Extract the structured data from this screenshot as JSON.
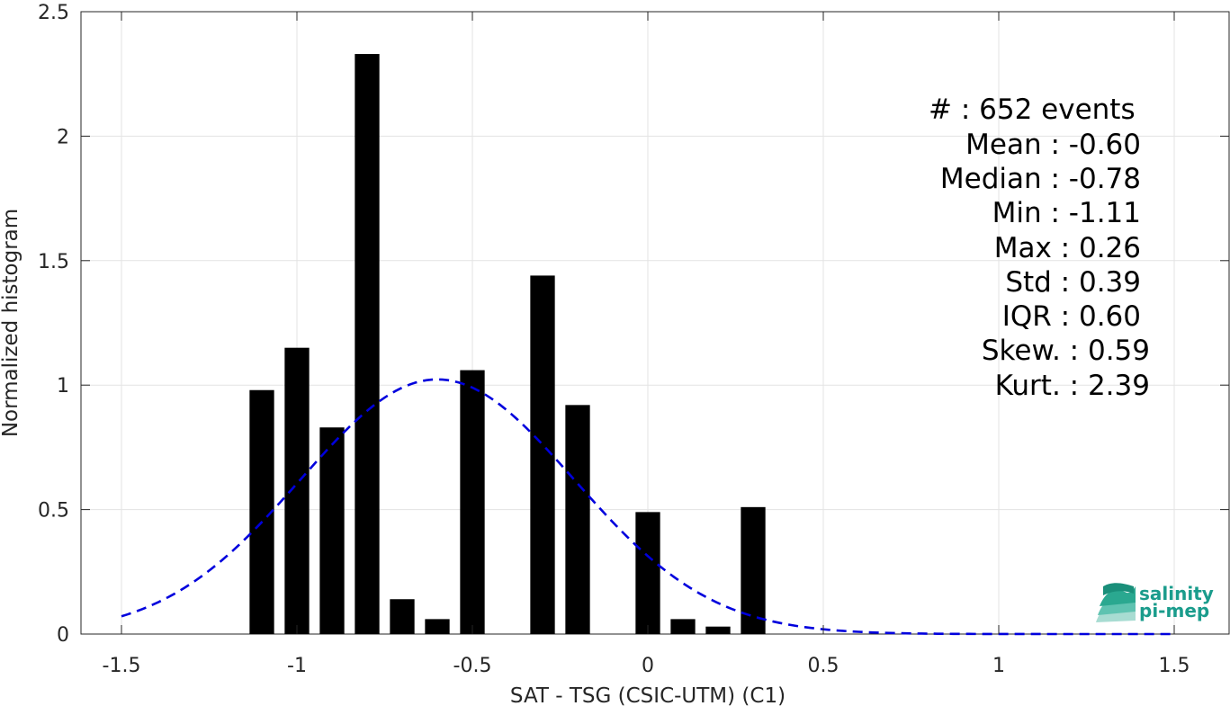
{
  "chart_data": {
    "type": "bar",
    "xlabel": "SAT - TSG (CSIC-UTM) (C1)",
    "ylabel": "Normalized histogram",
    "xlim": [
      -1.6,
      1.6
    ],
    "ylim": [
      0,
      2.5
    ],
    "x_ticks": [
      -1.5,
      -1,
      -0.5,
      0,
      0.5,
      1,
      1.5
    ],
    "x_tick_labels": [
      "-1.5",
      "-1",
      "-0.5",
      "0",
      "0.5",
      "1",
      "1.5"
    ],
    "y_ticks": [
      0,
      0.5,
      1,
      1.5,
      2,
      2.5
    ],
    "y_tick_labels": [
      "0",
      "0.5",
      "1",
      "1.5",
      "2",
      "2.5"
    ],
    "grid": true,
    "bar_color": "#000000",
    "bar_width": 0.07,
    "bars": [
      {
        "x": -1.1,
        "value": 0.98
      },
      {
        "x": -1.0,
        "value": 1.15
      },
      {
        "x": -0.9,
        "value": 0.83
      },
      {
        "x": -0.8,
        "value": 2.33
      },
      {
        "x": -0.7,
        "value": 0.14
      },
      {
        "x": -0.6,
        "value": 0.06
      },
      {
        "x": -0.5,
        "value": 1.06
      },
      {
        "x": -0.3,
        "value": 1.44
      },
      {
        "x": -0.2,
        "value": 0.92
      },
      {
        "x": 0.0,
        "value": 0.49
      },
      {
        "x": 0.1,
        "value": 0.06
      },
      {
        "x": 0.2,
        "value": 0.03
      },
      {
        "x": 0.3,
        "value": 0.51
      }
    ],
    "fit_curve": {
      "type": "gaussian",
      "mean": -0.6,
      "std": 0.39,
      "x_range": [
        -1.5,
        1.5
      ],
      "color": "#0000dd",
      "style": "dashed"
    },
    "stats_lines": [
      "#  : 652 events",
      "Mean : -0.60",
      "Median : -0.78",
      "Min : -1.11",
      "Max : 0.26",
      "Std : 0.39",
      "IQR : 0.60",
      "Skew. : 0.59",
      "Kurt. : 2.39"
    ]
  },
  "logo": {
    "line1": "salinity",
    "line2": "pi-mep"
  }
}
